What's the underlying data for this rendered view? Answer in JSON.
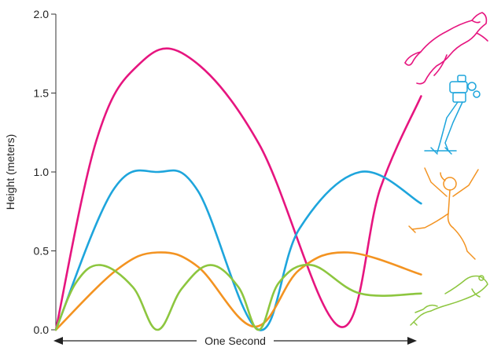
{
  "chart_data": {
    "type": "line",
    "ylabel": "Height (meters)",
    "xlabel": "One Second",
    "ylim": [
      0,
      2.0
    ],
    "xlim": [
      0,
      1.0
    ],
    "yticks": [
      "0.0",
      "0.5",
      "1.0",
      "1.5",
      "2.0"
    ],
    "grid": false,
    "series": [
      {
        "color": "#e6157f",
        "points": [
          [
            0.0,
            0.0
          ],
          [
            0.1,
            1.2
          ],
          [
            0.2,
            1.67
          ],
          [
            0.32,
            1.74
          ],
          [
            0.5,
            1.18
          ],
          [
            0.7,
            0.02
          ],
          [
            0.8,
            0.9
          ],
          [
            0.9,
            1.48
          ]
        ]
      },
      {
        "color": "#1ea5dc",
        "points": [
          [
            0.0,
            0.0
          ],
          [
            0.14,
            0.88
          ],
          [
            0.25,
            1.0
          ],
          [
            0.35,
            0.88
          ],
          [
            0.5,
            0.0
          ],
          [
            0.6,
            0.64
          ],
          [
            0.75,
            1.0
          ],
          [
            0.9,
            0.8
          ]
        ]
      },
      {
        "color": "#f39321",
        "points": [
          [
            0.0,
            0.0
          ],
          [
            0.15,
            0.38
          ],
          [
            0.25,
            0.49
          ],
          [
            0.35,
            0.4
          ],
          [
            0.49,
            0.02
          ],
          [
            0.6,
            0.38
          ],
          [
            0.72,
            0.49
          ],
          [
            0.9,
            0.35
          ]
        ]
      },
      {
        "color": "#8dc63f",
        "points": [
          [
            0.0,
            0.0
          ],
          [
            0.05,
            0.3
          ],
          [
            0.11,
            0.41
          ],
          [
            0.19,
            0.27
          ],
          [
            0.25,
            0.0
          ],
          [
            0.31,
            0.26
          ],
          [
            0.38,
            0.41
          ],
          [
            0.45,
            0.27
          ],
          [
            0.5,
            0.0
          ],
          [
            0.55,
            0.3
          ],
          [
            0.63,
            0.41
          ],
          [
            0.75,
            0.23
          ],
          [
            0.9,
            0.23
          ]
        ]
      }
    ],
    "illustrations": [
      {
        "icon": "cougar-leaping-icon",
        "color": "#e6157f"
      },
      {
        "icon": "jumping-robot-icon",
        "color": "#1ea5dc"
      },
      {
        "icon": "leaping-woman-icon",
        "color": "#f39321"
      },
      {
        "icon": "leaping-frog-icon",
        "color": "#8dc63f"
      }
    ]
  }
}
